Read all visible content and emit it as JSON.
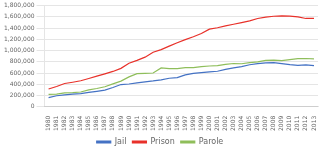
{
  "chart_data": {
    "type": "line",
    "x": [
      1980,
      1981,
      1982,
      1983,
      1984,
      1985,
      1986,
      1987,
      1988,
      1989,
      1990,
      1991,
      1992,
      1993,
      1994,
      1995,
      1996,
      1997,
      1998,
      1999,
      2000,
      2001,
      2002,
      2003,
      2004,
      2005,
      2006,
      2007,
      2008,
      2009,
      2010,
      2011,
      2012,
      2013
    ],
    "series": [
      {
        "name": "Jail",
        "color": "#4472c4",
        "values": [
          163000,
          196000,
          210000,
          224000,
          234000,
          256000,
          274000,
          295000,
          343000,
          395000,
          405000,
          426000,
          444000,
          459000,
          479000,
          507000,
          518000,
          567000,
          592000,
          606000,
          621000,
          631000,
          665000,
          691000,
          714000,
          747000,
          766000,
          780000,
          785000,
          767000,
          748000,
          735000,
          744000,
          731000
        ]
      },
      {
        "name": "Prison",
        "color": "#e8312a",
        "values": [
          315000,
          360000,
          413000,
          436000,
          462000,
          502000,
          544000,
          585000,
          628000,
          683000,
          774000,
          825000,
          882000,
          970000,
          1016000,
          1079000,
          1138000,
          1195000,
          1245000,
          1302000,
          1381000,
          1406000,
          1440000,
          1468000,
          1497000,
          1527000,
          1570000,
          1596000,
          1610000,
          1617000,
          1614000,
          1599000,
          1571000,
          1574000
        ]
      },
      {
        "name": "Parole",
        "color": "#8fbe5b",
        "values": [
          220000,
          225000,
          245000,
          250000,
          262000,
          300000,
          325000,
          355000,
          407000,
          456000,
          531000,
          590000,
          595000,
          600000,
          690000,
          680000,
          680000,
          695000,
          695000,
          713000,
          725000,
          732000,
          753000,
          769000,
          765000,
          784000,
          798000,
          826000,
          828000,
          819000,
          840000,
          855000,
          858000,
          853000
        ]
      }
    ],
    "xlim": [
      1979.5,
      2013.5
    ],
    "xticks": [
      1980,
      1981,
      1982,
      1983,
      1984,
      1985,
      1986,
      1987,
      1988,
      1989,
      1990,
      1991,
      1992,
      1993,
      1994,
      1995,
      1996,
      1997,
      1998,
      1999,
      2000,
      2001,
      2002,
      2003,
      2004,
      2005,
      2006,
      2007,
      2008,
      2009,
      2010,
      2011,
      2012,
      2013
    ],
    "ylim": [
      0,
      1800000
    ],
    "yticks": [
      0,
      {
        "value": 200000,
        "label": "200,000"
      },
      {
        "value": 400000,
        "label": "400,000"
      },
      {
        "value": 600000,
        "label": "600,000"
      },
      {
        "value": 800000,
        "label": "800,000"
      },
      {
        "value": 1000000,
        "label": "1,000,000"
      },
      {
        "value": 1200000,
        "label": "1,200,000"
      },
      {
        "value": 1400000,
        "label": "1,400,000"
      },
      {
        "value": 1600000,
        "label": "1,600,000"
      },
      {
        "value": 1800000,
        "label": "1,800,000"
      }
    ],
    "grid": true,
    "legend": "bottom"
  }
}
